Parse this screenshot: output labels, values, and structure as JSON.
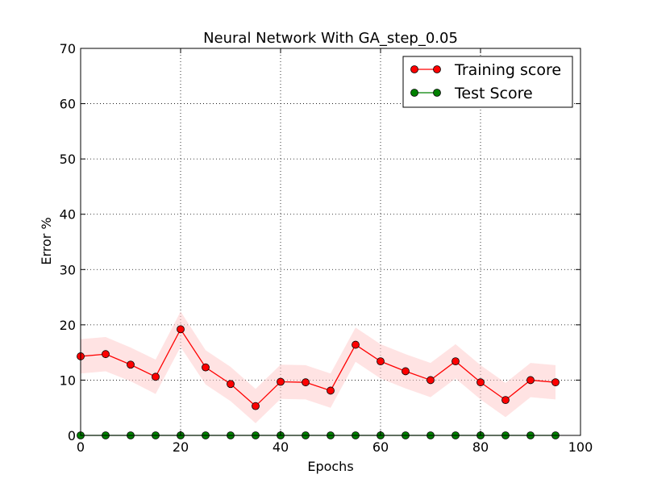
{
  "chart_data": {
    "type": "line",
    "title": "Neural Network With GA_step_0.05",
    "xlabel": "Epochs",
    "ylabel": "Error %",
    "xlim": [
      0,
      100
    ],
    "ylim": [
      0,
      70
    ],
    "x_ticks": [
      0,
      20,
      40,
      60,
      80,
      100
    ],
    "y_ticks": [
      0,
      10,
      20,
      30,
      40,
      50,
      60,
      70
    ],
    "grid": true,
    "legend_position": "top-right",
    "x": [
      0,
      5,
      10,
      15,
      20,
      25,
      30,
      35,
      40,
      45,
      50,
      55,
      60,
      65,
      70,
      75,
      80,
      85,
      90,
      95
    ],
    "series": [
      {
        "name": "Training score",
        "color": "#ff0000",
        "band_color": "#ffcccc",
        "values": [
          14.3,
          14.7,
          12.8,
          10.6,
          19.2,
          12.3,
          9.3,
          5.3,
          9.7,
          9.6,
          8.1,
          16.4,
          13.4,
          11.6,
          10.0,
          13.4,
          9.6,
          6.4,
          10.0,
          9.6
        ],
        "lower": [
          11.2,
          11.6,
          9.8,
          7.5,
          16.0,
          9.2,
          6.2,
          2.2,
          6.6,
          6.5,
          5.0,
          13.3,
          10.3,
          8.5,
          6.9,
          10.3,
          6.5,
          3.3,
          6.9,
          6.5
        ],
        "upper": [
          17.4,
          17.8,
          15.9,
          13.7,
          22.4,
          15.4,
          12.4,
          8.4,
          12.8,
          12.7,
          11.2,
          19.5,
          16.5,
          14.7,
          13.1,
          16.5,
          12.7,
          9.5,
          13.1,
          12.7
        ]
      },
      {
        "name": "Test Score",
        "color": "#008000",
        "values": [
          0,
          0,
          0,
          0,
          0,
          0,
          0,
          0,
          0,
          0,
          0,
          0,
          0,
          0,
          0,
          0,
          0,
          0,
          0,
          0
        ]
      }
    ]
  }
}
